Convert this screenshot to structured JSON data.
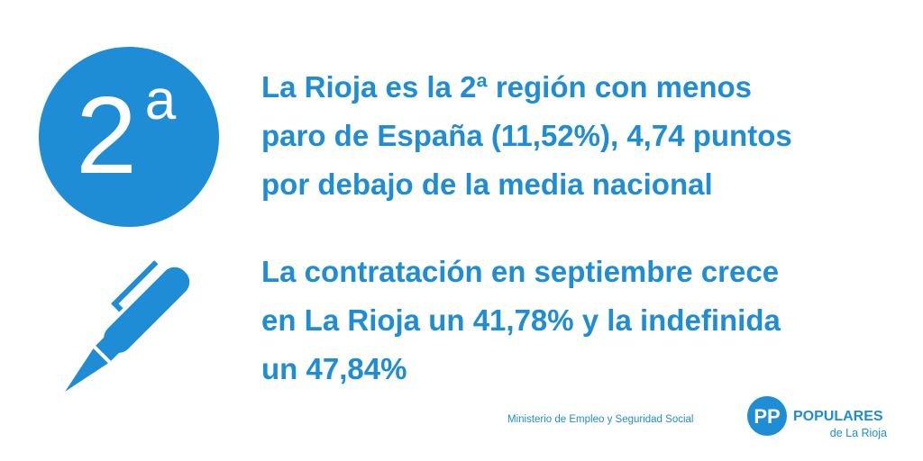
{
  "badge": {
    "number": "2",
    "suffix": "a"
  },
  "paragraphs": [
    {
      "lines": [
        "La Rioja es la 2ª región con menos",
        "paro de España (11,52%), 4,74 puntos",
        "por debajo de la media nacional"
      ]
    },
    {
      "lines": [
        "La contratación en septiembre crece",
        "en La Rioja un 41,78% y la indefinida",
        "un 47,84%"
      ]
    }
  ],
  "footer": {
    "source": "Ministerio de Empleo y Seguridad Social",
    "logo": {
      "mark": "PP",
      "name": "POPULARES",
      "region": "de La Rioja"
    }
  }
}
